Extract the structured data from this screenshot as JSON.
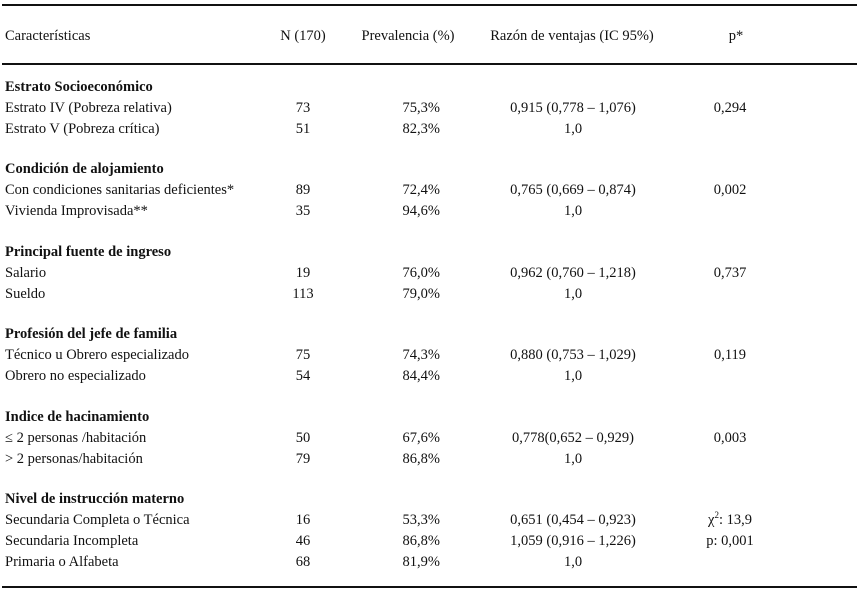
{
  "header": {
    "characteristics": "Características",
    "n": "N (170)",
    "prevalence": "Prevalencia (%)",
    "odds_ratio": "Razón de ventajas (IC 95%)",
    "p": "p*"
  },
  "sections": [
    {
      "title": "Estrato Socioeconómico",
      "rows": [
        {
          "label": "Estrato IV (Pobreza relativa)",
          "n": "73",
          "prevalence": "75,3%",
          "or": "0,915 (0,778 – 1,076)",
          "p": "0,294"
        },
        {
          "label": "Estrato V  (Pobreza crítica)",
          "n": "51",
          "prevalence": "82,3%",
          "or": "1,0",
          "p": ""
        }
      ]
    },
    {
      "title": "Condición de alojamiento",
      "rows": [
        {
          "label": "Con condiciones sanitarias deficientes*",
          "n": "89",
          "prevalence": "72,4%",
          "or": "0,765 (0,669 – 0,874)",
          "p": "0,002"
        },
        {
          "label": "Vivienda Improvisada**",
          "n": "35",
          "prevalence": "94,6%",
          "or": "1,0",
          "p": ""
        }
      ]
    },
    {
      "title": "Principal fuente de ingreso",
      "rows": [
        {
          "label": "Salario",
          "n": "19",
          "prevalence": "76,0%",
          "or": "0,962 (0,760 – 1,218)",
          "p": "0,737"
        },
        {
          "label": "Sueldo",
          "n": "113",
          "prevalence": "79,0%",
          "or": "1,0",
          "p": ""
        }
      ]
    },
    {
      "title": "Profesión del jefe de familia",
      "rows": [
        {
          "label": "Técnico u Obrero especializado",
          "n": "75",
          "prevalence": "74,3%",
          "or": "0,880 (0,753 – 1,029)",
          "p": "0,119"
        },
        {
          "label": "Obrero no especializado",
          "n": "54",
          "prevalence": "84,4%",
          "or": "1,0",
          "p": ""
        }
      ]
    },
    {
      "title": "Indice de hacinamiento",
      "rows": [
        {
          "label": "≤ 2 personas /habitación",
          "n": "50",
          "prevalence": "67,6%",
          "or": "0,778(0,652 – 0,929)",
          "p": "0,003"
        },
        {
          "label": "> 2 personas/habitación",
          "n": "79",
          "prevalence": "86,8%",
          "or": "1,0",
          "p": ""
        }
      ]
    },
    {
      "title": "Nivel de instrucción materno",
      "rows": [
        {
          "label": "Secundaria Completa o Técnica",
          "n": "16",
          "prevalence": "53,3%",
          "or": "0,651 (0,454 – 0,923)",
          "p": "χ2: 13,9"
        },
        {
          "label": "Secundaria Incompleta",
          "n": "46",
          "prevalence": "86,8%",
          "or": "1,059 (0,916 – 1,226)",
          "p": "p: 0,001"
        },
        {
          "label": "Primaria o Alfabeta",
          "n": "68",
          "prevalence": "81,9%",
          "or": "1,0",
          "p": ""
        }
      ]
    }
  ]
}
